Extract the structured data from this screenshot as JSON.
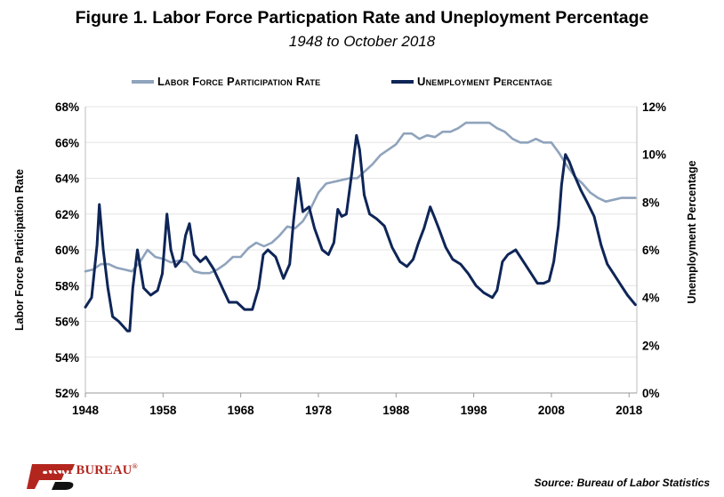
{
  "title": "Figure 1. Labor Force Particpation Rate and Uneployment Percentage",
  "subtitle": "1948 to October 2018",
  "source": "Source: Bureau of Labor Statistics",
  "logo_text": "FARM BUREAU",
  "logo_mark": "®",
  "colors": {
    "lfpr": "#8fa3bc",
    "unemp": "#0e2557",
    "grid": "#e4e4e4",
    "logo": "#b3261e"
  },
  "chart_data": {
    "type": "line",
    "legend_position": "top-center",
    "grid": true,
    "x_ticks": [
      "1948",
      "1958",
      "1968",
      "1978",
      "1988",
      "1998",
      "2008",
      "2018"
    ],
    "xlim": [
      1948,
      2019
    ],
    "left_axis": {
      "label": "Labor Force Participation Rate",
      "lim": [
        52,
        68
      ],
      "ticks": [
        "52%",
        "54%",
        "56%",
        "58%",
        "60%",
        "62%",
        "64%",
        "66%",
        "68%"
      ]
    },
    "right_axis": {
      "label": "Unemployment Percentage",
      "lim": [
        0,
        12
      ],
      "ticks": [
        "0%",
        "2%",
        "4%",
        "6%",
        "8%",
        "10%",
        "12%"
      ]
    },
    "series": [
      {
        "name": "Labor Force Participation Rate",
        "axis": "left",
        "x": [
          1948,
          1949,
          1950,
          1951,
          1952,
          1953,
          1954,
          1955,
          1956,
          1957,
          1958,
          1959,
          1960,
          1961,
          1962,
          1963,
          1964,
          1965,
          1966,
          1967,
          1968,
          1969,
          1970,
          1971,
          1972,
          1973,
          1974,
          1975,
          1976,
          1977,
          1978,
          1979,
          1980,
          1981,
          1982,
          1983,
          1984,
          1985,
          1986,
          1987,
          1988,
          1989,
          1990,
          1991,
          1992,
          1993,
          1994,
          1995,
          1996,
          1997,
          1998,
          1999,
          2000,
          2001,
          2002,
          2003,
          2004,
          2005,
          2006,
          2007,
          2008,
          2009,
          2010,
          2011,
          2012,
          2013,
          2014,
          2015,
          2016,
          2017,
          2018.8
        ],
        "values": [
          58.8,
          58.9,
          59.2,
          59.2,
          59.0,
          58.9,
          58.8,
          59.3,
          60.0,
          59.6,
          59.5,
          59.3,
          59.4,
          59.3,
          58.8,
          58.7,
          58.7,
          58.9,
          59.2,
          59.6,
          59.6,
          60.1,
          60.4,
          60.2,
          60.4,
          60.8,
          61.3,
          61.2,
          61.6,
          62.3,
          63.2,
          63.7,
          63.8,
          63.9,
          64.0,
          64.0,
          64.4,
          64.8,
          65.3,
          65.6,
          65.9,
          66.5,
          66.5,
          66.2,
          66.4,
          66.3,
          66.6,
          66.6,
          66.8,
          67.1,
          67.1,
          67.1,
          67.1,
          66.8,
          66.6,
          66.2,
          66.0,
          66.0,
          66.2,
          66.0,
          66.0,
          65.4,
          64.7,
          64.1,
          63.7,
          63.2,
          62.9,
          62.7,
          62.8,
          62.9,
          62.9
        ]
      },
      {
        "name": "Unemployment Percentage",
        "axis": "right",
        "x": [
          1948,
          1948.8,
          1949.5,
          1949.8,
          1950.3,
          1950.9,
          1951.5,
          1952.3,
          1953.4,
          1953.7,
          1954.1,
          1954.7,
          1955.5,
          1956.4,
          1957.3,
          1957.9,
          1958.5,
          1959.0,
          1959.6,
          1960.4,
          1960.9,
          1961.4,
          1962.0,
          1962.8,
          1963.5,
          1964.5,
          1965.5,
          1966.5,
          1967.5,
          1968.5,
          1969.5,
          1970.3,
          1970.9,
          1971.5,
          1972.5,
          1973.5,
          1974.3,
          1974.8,
          1975.4,
          1976.0,
          1976.8,
          1977.5,
          1978.5,
          1979.3,
          1980.0,
          1980.5,
          1981.0,
          1981.6,
          1982.3,
          1982.9,
          1983.3,
          1983.9,
          1984.6,
          1985.5,
          1986.5,
          1987.5,
          1988.5,
          1989.4,
          1990.2,
          1990.9,
          1991.6,
          1992.4,
          1992.9,
          1993.5,
          1994.4,
          1995.3,
          1996.3,
          1997.3,
          1998.3,
          1999.3,
          2000.4,
          2001.0,
          2001.7,
          2002.4,
          2003.4,
          2004.2,
          2005.2,
          2006.2,
          2007.0,
          2007.7,
          2008.3,
          2008.9,
          2009.3,
          2009.8,
          2010.3,
          2011.0,
          2011.8,
          2012.6,
          2013.5,
          2014.4,
          2015.2,
          2016.0,
          2017.0,
          2017.8,
          2018.8
        ],
        "values": [
          3.6,
          4.0,
          6.2,
          7.9,
          6.0,
          4.4,
          3.2,
          3.0,
          2.6,
          2.6,
          4.4,
          6.0,
          4.4,
          4.1,
          4.3,
          5.0,
          7.5,
          6.0,
          5.3,
          5.6,
          6.6,
          7.1,
          5.8,
          5.5,
          5.7,
          5.2,
          4.5,
          3.8,
          3.8,
          3.5,
          3.5,
          4.4,
          5.8,
          6.0,
          5.7,
          4.8,
          5.4,
          7.2,
          9.0,
          7.6,
          7.8,
          6.9,
          6.0,
          5.8,
          6.3,
          7.7,
          7.4,
          7.5,
          9.2,
          10.8,
          10.2,
          8.3,
          7.5,
          7.3,
          7.0,
          6.1,
          5.5,
          5.3,
          5.6,
          6.3,
          6.9,
          7.8,
          7.4,
          6.9,
          6.1,
          5.6,
          5.4,
          5.0,
          4.5,
          4.2,
          4.0,
          4.3,
          5.5,
          5.8,
          6.0,
          5.6,
          5.1,
          4.6,
          4.6,
          4.7,
          5.5,
          7.0,
          8.7,
          10.0,
          9.7,
          9.1,
          8.5,
          8.0,
          7.4,
          6.2,
          5.4,
          5.0,
          4.5,
          4.1,
          3.7
        ]
      }
    ]
  }
}
